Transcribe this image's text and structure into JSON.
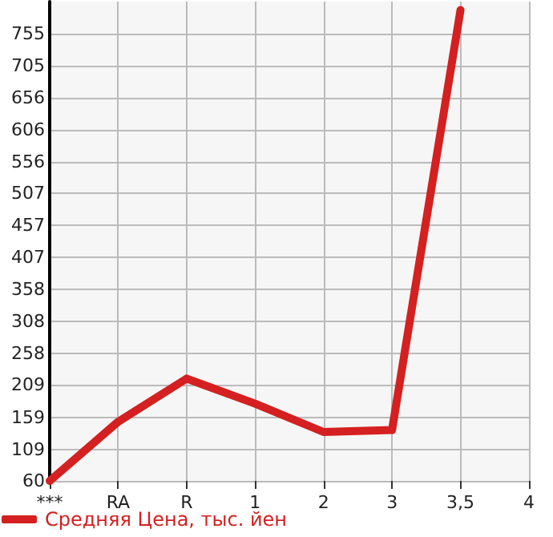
{
  "chart_data": {
    "type": "line",
    "categories": [
      "***",
      "RA",
      "R",
      "1",
      "2",
      "3",
      "3,5",
      "4"
    ],
    "series": [
      {
        "name": "Средняя Цена, тыс. йен",
        "color": "#d42020",
        "values": [
          60,
          152,
          219,
          180,
          136,
          139,
          792,
          null
        ]
      }
    ],
    "ylim": [
      60,
      805
    ],
    "yticks": [
      60,
      109,
      159,
      209,
      258,
      308,
      358,
      407,
      457,
      507,
      556,
      606,
      656,
      705,
      755
    ],
    "grid": true,
    "legend": "bottom left",
    "marker": "none",
    "line_style": "solid"
  }
}
